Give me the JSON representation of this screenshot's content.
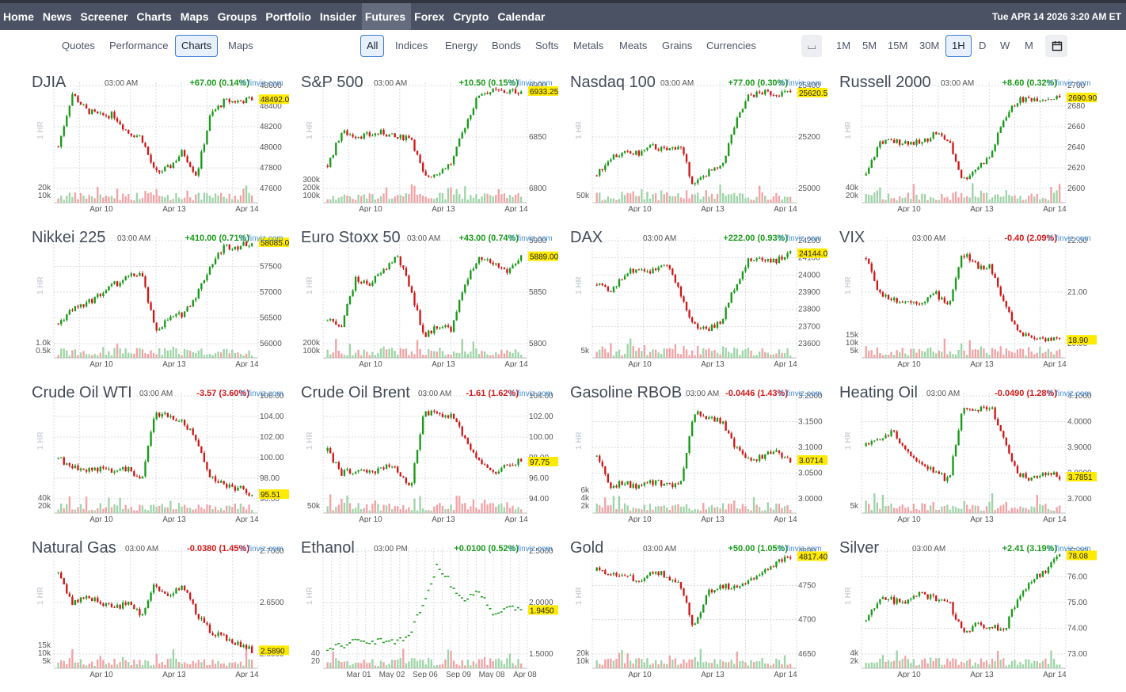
{
  "nav": {
    "items": [
      "Home",
      "News",
      "Screener",
      "Charts",
      "Maps",
      "Groups",
      "Portfolio",
      "Insider",
      "Futures",
      "Forex",
      "Crypto",
      "Calendar"
    ],
    "active": "Futures",
    "datetime": "Tue APR 14 2026 3:20 AM ET"
  },
  "subnav": {
    "views": [
      "Quotes",
      "Performance",
      "Charts",
      "Maps"
    ],
    "active_view": "Charts",
    "categories": [
      "All",
      "Indices",
      "Energy",
      "Bonds",
      "Softs",
      "Metals",
      "Meats",
      "Grains",
      "Currencies"
    ],
    "active_category": "All",
    "timeframes": [
      "1M",
      "5M",
      "15M",
      "30M",
      "1H",
      "D",
      "W",
      "M"
    ],
    "active_timeframe": "1H",
    "calendar_icon": "calendar-icon",
    "view_toggle_icon": "candles-icon"
  },
  "colors": {
    "up": "#1a9a1a",
    "down": "#d01818",
    "vol_up": "#9fd4a8",
    "vol_down": "#f2a3a6",
    "highlight": "#ffeb00"
  },
  "charts": [
    {
      "name": "DJIA",
      "time": "03:00 AM",
      "change": "+67.00 (0.14%)",
      "dir": "up",
      "source": "© finviz.com",
      "interval": "1 HR",
      "yticks": [
        "48600",
        "48400",
        "48200",
        "48000",
        "47800",
        "47600"
      ],
      "vticks": [
        "20k",
        "10k"
      ],
      "xticks": [
        "Apr 10",
        "Apr 13",
        "Apr 14"
      ],
      "last": "48492.0",
      "last_frac": 0.85,
      "chart_data": {
        "type": "candlestick",
        "y": [
          48000,
          48550,
          48380,
          48320,
          48330,
          48150,
          48100,
          47720,
          47780,
          47950,
          47700,
          48330,
          48470,
          48470,
          48492
        ],
        "ylim": [
          47550,
          48650
        ]
      }
    },
    {
      "name": "S&P 500",
      "time": "03:00 AM",
      "change": "+10.50 (0.15%)",
      "dir": "up",
      "source": "© finviz.com",
      "interval": "1 HR",
      "yticks": [
        "6900",
        "6850",
        "6800"
      ],
      "vticks": [
        "300k",
        "200k",
        "100k"
      ],
      "xticks": [
        "Apr 10",
        "Apr 13",
        "Apr 14"
      ],
      "last": "6933.25",
      "last_frac": 0.93,
      "chart_data": {
        "type": "candlestick",
        "y": [
          6810,
          6865,
          6860,
          6860,
          6865,
          6855,
          6860,
          6790,
          6800,
          6815,
          6880,
          6930,
          6933,
          6932,
          6933.25
        ],
        "ylim": [
          6770,
          6945
        ]
      }
    },
    {
      "name": "Nasdaq 100",
      "time": "03:00 AM",
      "change": "+77.00 (0.30%)",
      "dir": "up",
      "source": "© finviz.com",
      "interval": "1 HR",
      "yticks": [
        "25400",
        "25200",
        "25000"
      ],
      "vticks": [
        "50k"
      ],
      "xticks": [
        "Apr 10",
        "Apr 13",
        "Apr 14"
      ],
      "last": "25620.5",
      "last_frac": 0.9,
      "chart_data": {
        "type": "candlestick",
        "y": [
          25050,
          25180,
          25200,
          25200,
          25250,
          25220,
          25260,
          24980,
          25070,
          25100,
          25400,
          25600,
          25620,
          25615,
          25620.5
        ],
        "ylim": [
          24950,
          25680
        ]
      }
    },
    {
      "name": "Russell 2000",
      "time": "03:00 AM",
      "change": "+8.60 (0.32%)",
      "dir": "up",
      "source": "© finviz.com",
      "interval": "1 HR",
      "yticks": [
        "2700",
        "2680",
        "2660",
        "2640",
        "2620",
        "2600"
      ],
      "vticks": [
        "40k",
        "20k"
      ],
      "xticks": [
        "Apr 10",
        "Apr 13",
        "Apr 14"
      ],
      "last": "2690.90",
      "last_frac": 0.9,
      "chart_data": {
        "type": "candlestick",
        "y": [
          2610,
          2645,
          2645,
          2645,
          2643,
          2655,
          2645,
          2605,
          2618,
          2630,
          2670,
          2688,
          2690,
          2690,
          2690.9
        ],
        "ylim": [
          2595,
          2705
        ]
      }
    },
    {
      "name": "Nikkei 225",
      "time": "03:00 AM",
      "change": "+410.00 (0.71%)",
      "dir": "up",
      "source": "© finviz.com",
      "interval": "1 HR",
      "yticks": [
        "58000",
        "57500",
        "57000",
        "56500",
        "56000"
      ],
      "vticks": [
        "1.0k",
        "0.5k"
      ],
      "xticks": [
        "Apr 10",
        "Apr 13",
        "Apr 14"
      ],
      "last": "58085.0",
      "last_frac": 0.95,
      "chart_data": {
        "type": "candlestick",
        "y": [
          56400,
          56700,
          56800,
          57000,
          57200,
          57350,
          57450,
          56250,
          56500,
          56600,
          57000,
          57600,
          58000,
          58000,
          58085
        ],
        "ylim": [
          55950,
          58150
        ]
      }
    },
    {
      "name": "Euro Stoxx 50",
      "time": "03:00 AM",
      "change": "+43.00 (0.74%)",
      "dir": "up",
      "source": "© finviz.com",
      "interval": "1 HR",
      "yticks": [
        "5900",
        "5850",
        "5800"
      ],
      "vticks": [
        "200k",
        "100k"
      ],
      "xticks": [
        "Apr 10",
        "Apr 13",
        "Apr 14"
      ],
      "last": "5889.00",
      "last_frac": 0.85,
      "chart_data": {
        "type": "candlestick",
        "y": [
          5810,
          5805,
          5860,
          5855,
          5870,
          5890,
          5850,
          5790,
          5805,
          5800,
          5860,
          5885,
          5880,
          5870,
          5889
        ],
        "ylim": [
          5780,
          5910
        ]
      }
    },
    {
      "name": "DAX",
      "time": "03:00 AM",
      "change": "+222.00 (0.93%)",
      "dir": "up",
      "source": "© finviz.com",
      "interval": "1 HR",
      "yticks": [
        "24200",
        "24100",
        "24000",
        "23900",
        "23800",
        "23700",
        "23600"
      ],
      "vticks": [
        "5k"
      ],
      "xticks": [
        "Apr 10",
        "Apr 13",
        "Apr 14"
      ],
      "last": "24144.0",
      "last_frac": 0.85,
      "chart_data": {
        "type": "candlestick",
        "y": [
          23950,
          23900,
          24020,
          24050,
          24030,
          24100,
          23900,
          23700,
          23680,
          23720,
          23950,
          24100,
          24110,
          24100,
          24144
        ],
        "ylim": [
          23580,
          24230
        ]
      }
    },
    {
      "name": "VIX",
      "time": "03:00 AM",
      "change": "-0.40 (2.09%)",
      "dir": "down",
      "source": "© finviz.com",
      "interval": "1 HR",
      "yticks": [
        "22.00",
        "21.00",
        "20.00"
      ],
      "vticks": [
        "15k",
        "10k",
        "5k"
      ],
      "xticks": [
        "Apr 10",
        "Apr 13",
        "Apr 14"
      ],
      "last": "18.90",
      "last_frac": 0.1,
      "chart_data": {
        "type": "candlestick",
        "y": [
          21.9,
          20.6,
          20.4,
          20.3,
          20.3,
          20.6,
          20.2,
          22.1,
          21.6,
          21.6,
          20.2,
          19.2,
          19.0,
          18.95,
          18.9
        ],
        "ylim": [
          18.7,
          22.6
        ]
      }
    },
    {
      "name": "Crude Oil WTI",
      "time": "03:00 AM",
      "change": "-3.57 (3.60%)",
      "dir": "down",
      "source": "© finviz.com",
      "interval": "1 HR",
      "yticks": [
        "106.00",
        "104.00",
        "102.00",
        "100.00",
        "98.00",
        "96.00"
      ],
      "vticks": [
        "40k",
        "20k"
      ],
      "xticks": [
        "Apr 10",
        "Apr 13",
        "Apr 14"
      ],
      "last": "95.51",
      "last_frac": 0.1,
      "chart_data": {
        "type": "candlestick",
        "y": [
          99.5,
          98.6,
          98.3,
          98.4,
          98.0,
          98.5,
          96.8,
          104.8,
          104.2,
          103.8,
          101.5,
          97.5,
          96.5,
          96.2,
          95.51
        ],
        "ylim": [
          94.8,
          106.8
        ]
      }
    },
    {
      "name": "Crude Oil Brent",
      "time": "03:00 AM",
      "change": "-1.61 (1.62%)",
      "dir": "down",
      "source": "© finviz.com",
      "interval": "1 HR",
      "yticks": [
        "104.00",
        "102.00",
        "100.00",
        "98.00",
        "96.00",
        "94.00"
      ],
      "vticks": [
        "50k"
      ],
      "xticks": [
        "Apr 10",
        "Apr 13",
        "Apr 14"
      ],
      "last": "97.75",
      "last_frac": 0.4,
      "chart_data": {
        "type": "candlestick",
        "y": [
          98.8,
          96.6,
          96.8,
          96.5,
          97.3,
          97.0,
          95.2,
          102.8,
          102.5,
          102.3,
          100.0,
          97.8,
          96.5,
          97.4,
          97.75
        ],
        "ylim": [
          93.8,
          104.6
        ]
      }
    },
    {
      "name": "Gasoline RBOB",
      "time": "03:00 AM",
      "change": "-0.0446 (1.43%)",
      "dir": "down",
      "source": "© finviz.com",
      "interval": "1 HR",
      "yticks": [
        "3.2000",
        "3.1500",
        "3.1000",
        "3.0500",
        "3.0000"
      ],
      "vticks": [
        "6k",
        "4k",
        "2k"
      ],
      "xticks": [
        "Apr 10",
        "Apr 13",
        "Apr 14"
      ],
      "last": "3.0714",
      "last_frac": 0.4,
      "chart_data": {
        "type": "candlestick",
        "y": [
          3.08,
          3.01,
          3.02,
          3.01,
          3.02,
          3.02,
          3.01,
          3.18,
          3.17,
          3.16,
          3.1,
          3.07,
          3.08,
          3.09,
          3.0714
        ],
        "ylim": [
          2.98,
          3.22
        ]
      }
    },
    {
      "name": "Heating Oil",
      "time": "03:00 AM",
      "change": "-0.0490 (1.28%)",
      "dir": "down",
      "source": "© finviz.com",
      "interval": "1 HR",
      "yticks": [
        "4.1000",
        "4.0000",
        "3.9000",
        "3.8000",
        "3.7000"
      ],
      "vticks": [
        "5k"
      ],
      "xticks": [
        "Apr 10",
        "Apr 13",
        "Apr 14"
      ],
      "last": "3.7851",
      "last_frac": 0.28,
      "chart_data": {
        "type": "candlestick",
        "y": [
          3.92,
          3.96,
          3.98,
          3.9,
          3.84,
          3.8,
          3.77,
          4.09,
          4.08,
          4.1,
          3.95,
          3.79,
          3.78,
          3.8,
          3.7851
        ],
        "ylim": [
          3.68,
          4.15
        ]
      }
    },
    {
      "name": "Natural Gas",
      "time": "03:00 AM",
      "change": "-0.0380 (1.45%)",
      "dir": "down",
      "source": "© finviz.com",
      "interval": "1 HR",
      "yticks": [
        "2.7000",
        "2.6500",
        "2.6000"
      ],
      "vticks": [
        "15k",
        "10k",
        "5k"
      ],
      "xticks": [
        "Apr 10",
        "Apr 13",
        "Apr 14"
      ],
      "last": "2.5890",
      "last_frac": 0.08,
      "chart_data": {
        "type": "candlestick",
        "y": [
          2.72,
          2.67,
          2.68,
          2.67,
          2.66,
          2.67,
          2.65,
          2.7,
          2.68,
          2.7,
          2.65,
          2.62,
          2.61,
          2.6,
          2.589
        ],
        "ylim": [
          2.58,
          2.76
        ]
      }
    },
    {
      "name": "Ethanol",
      "time": "03:00 PM",
      "change": "+0.0100 (0.52%)",
      "dir": "up",
      "source": "© finviz.com",
      "interval": "1 HR",
      "yticks": [
        "2.5000",
        "2.0000",
        "1.5000"
      ],
      "vticks": [
        "40",
        "20"
      ],
      "xticks": [
        "Mar 01",
        "May 02",
        "Sep 06",
        "Sep 09",
        "May 08",
        "Apr 08"
      ],
      "last": "1.9450",
      "last_frac": 0.45,
      "chart_data": {
        "type": "scatter",
        "y": [
          1.4,
          1.45,
          1.5,
          1.5,
          1.52,
          1.5,
          1.6,
          2.1,
          2.6,
          2.3,
          2.1,
          2.2,
          1.9,
          2.0,
          1.945
        ],
        "ylim": [
          1.3,
          2.8
        ]
      }
    },
    {
      "name": "Gold",
      "time": "03:00 AM",
      "change": "+50.00 (1.05%)",
      "dir": "up",
      "source": "© finviz.com",
      "interval": "1 HR",
      "yticks": [
        "4800",
        "4750",
        "4700",
        "4650"
      ],
      "vticks": [
        "20k",
        "10k"
      ],
      "xticks": [
        "Apr 10",
        "Apr 13",
        "Apr 14"
      ],
      "last": "4817.40",
      "last_frac": 0.88,
      "chart_data": {
        "type": "candlestick",
        "y": [
          4790,
          4780,
          4785,
          4770,
          4790,
          4780,
          4770,
          4680,
          4750,
          4760,
          4760,
          4770,
          4790,
          4805,
          4817.4
        ],
        "ylim": [
          4630,
          4830
        ]
      }
    },
    {
      "name": "Silver",
      "time": "03:00 AM",
      "change": "+2.41 (3.19%)",
      "dir": "up",
      "source": "© finviz.com",
      "interval": "1 HR",
      "yticks": [
        "77.00",
        "76.00",
        "75.00",
        "74.00",
        "73.00"
      ],
      "vticks": [
        "4k",
        "2k"
      ],
      "xticks": [
        "Apr 10",
        "Apr 13",
        "Apr 14"
      ],
      "last": "78.08",
      "last_frac": 0.92,
      "chart_data": {
        "type": "candlestick",
        "y": [
          74.5,
          75.8,
          75.6,
          75.5,
          76.0,
          75.7,
          75.5,
          73.8,
          74.3,
          74.2,
          74.0,
          75.8,
          76.8,
          77.2,
          78.08
        ],
        "ylim": [
          72.6,
          78.4
        ]
      }
    }
  ]
}
